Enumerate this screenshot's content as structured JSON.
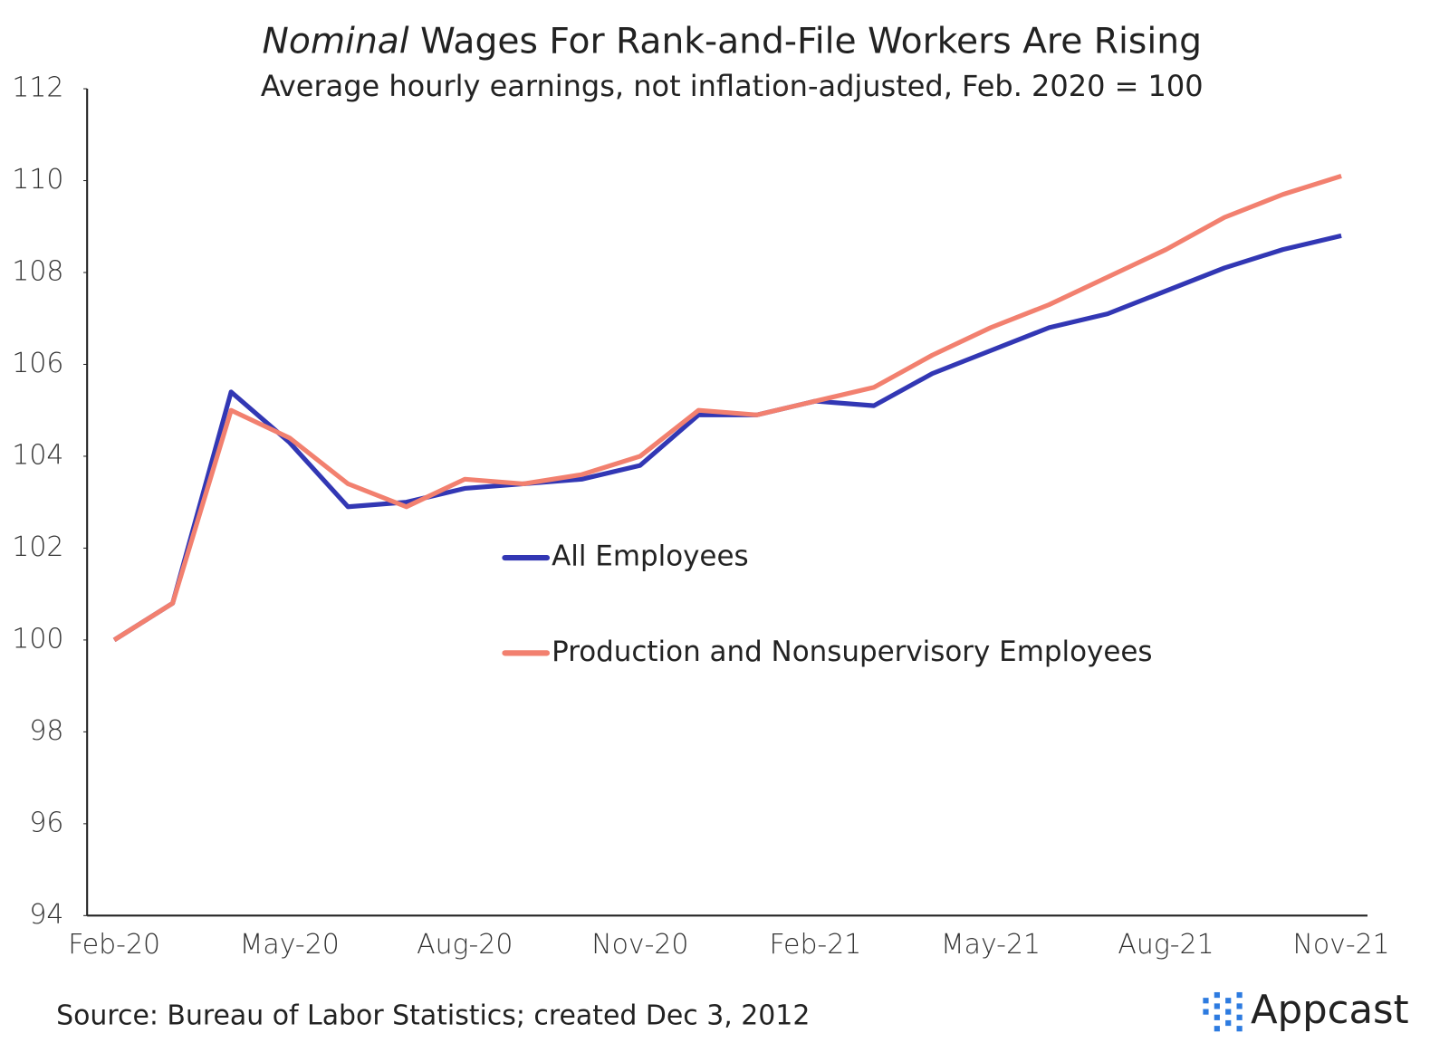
{
  "chart_data": {
    "type": "line",
    "title_emphasis": "Nominal",
    "title": "Wages For Rank-and-File Workers Are Rising",
    "subtitle": "Average hourly earnings, not inflation-adjusted, Feb. 2020 = 100",
    "source": "Source: Bureau of Labor Statistics; created Dec 3, 2012",
    "brand": "Appcast",
    "categories": [
      "Feb-20",
      null,
      null,
      "May-20",
      null,
      null,
      "Aug-20",
      null,
      null,
      "Nov-20",
      null,
      null,
      "Feb-21",
      null,
      null,
      "May-21",
      null,
      null,
      "Aug-21",
      null,
      null,
      "Nov-21"
    ],
    "series": [
      {
        "name": "All Employees",
        "color": "#3237b4",
        "values": [
          100,
          100.8,
          105.4,
          104.3,
          102.9,
          103.0,
          103.3,
          103.4,
          103.5,
          103.8,
          104.9,
          104.9,
          105.2,
          105.1,
          105.8,
          106.3,
          106.8,
          107.1,
          107.6,
          108.1,
          108.5,
          108.8
        ]
      },
      {
        "name": "Production and Nonsupervisory Employees",
        "color": "#f2806f",
        "values": [
          100,
          100.8,
          105.0,
          104.4,
          103.4,
          102.9,
          103.5,
          103.4,
          103.6,
          104.0,
          105.0,
          104.9,
          105.2,
          105.5,
          106.2,
          106.8,
          107.3,
          107.9,
          108.5,
          109.2,
          109.7,
          110.1
        ]
      }
    ],
    "ylim": [
      94,
      112
    ],
    "yticks": [
      94,
      96,
      98,
      100,
      102,
      104,
      106,
      108,
      110,
      112
    ],
    "grid": false,
    "legend": "center"
  }
}
